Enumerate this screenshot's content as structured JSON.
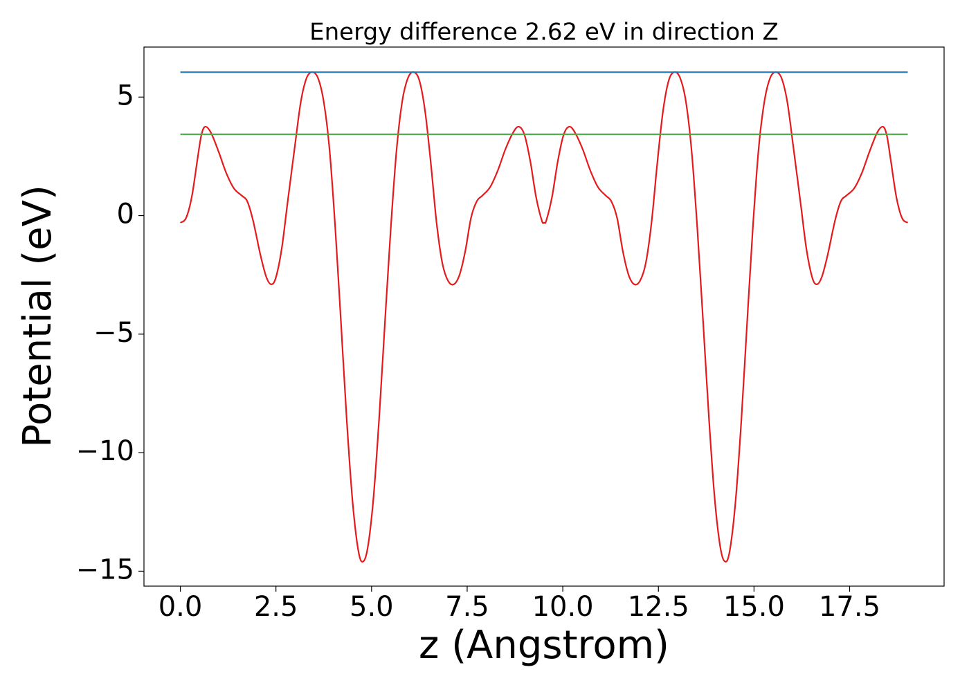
{
  "chart_data": {
    "type": "line",
    "title": "Energy difference 2.62 eV in direction Z",
    "xlabel": "z (Angstrom)",
    "ylabel": "Potential (eV)",
    "xlim": [
      -0.951,
      19.97
    ],
    "ylim": [
      -15.63,
      7.11
    ],
    "xticks": [
      {
        "value": 0,
        "label": "0.0"
      },
      2.5,
      {
        "value": 5,
        "label": "5.0"
      },
      7.5,
      {
        "value": 10,
        "label": "10.0"
      },
      12.5,
      {
        "value": 15,
        "label": "15.0"
      },
      17.5
    ],
    "yticks": [
      {
        "value": -15,
        "label": "−15"
      },
      {
        "value": -10,
        "label": "−10"
      },
      {
        "value": -5,
        "label": "−5"
      },
      0,
      5
    ],
    "series": [
      {
        "color": "#e41a1c",
        "x": [
          0,
          0.15,
          0.3,
          0.45,
          0.55,
          0.65,
          0.8,
          1.0,
          1.2,
          1.4,
          1.6,
          1.75,
          1.9,
          2.1,
          2.25,
          2.38,
          2.5,
          2.65,
          2.8,
          3.0,
          3.15,
          3.3,
          3.45,
          3.6,
          3.75,
          3.9,
          4.05,
          4.2,
          4.35,
          4.5,
          4.65,
          4.77,
          4.9,
          5.05,
          5.2,
          5.35,
          5.5,
          5.65,
          5.8,
          5.95,
          6.1,
          6.25,
          6.4,
          6.55,
          6.7,
          6.85,
          7.0,
          7.15,
          7.3,
          7.45,
          7.6,
          7.75,
          7.9,
          8.1,
          8.3,
          8.5,
          8.7,
          8.85,
          9.0,
          9.15,
          9.3,
          9.45,
          9.51,
          9.57,
          9.72,
          9.87,
          10.02,
          10.17,
          10.32,
          10.52,
          10.72,
          10.92,
          11.12,
          11.27,
          11.42,
          11.57,
          11.72,
          11.87,
          12.02,
          12.17,
          12.32,
          12.47,
          12.62,
          12.77,
          12.92,
          13.07,
          13.22,
          13.37,
          13.52,
          13.67,
          13.82,
          13.97,
          14.12,
          14.25,
          14.37,
          14.52,
          14.67,
          14.82,
          14.97,
          15.12,
          15.27,
          15.42,
          15.57,
          15.72,
          15.87,
          16.02,
          16.22,
          16.37,
          16.52,
          16.64,
          16.77,
          16.92,
          17.12,
          17.27,
          17.42,
          17.62,
          17.82,
          18.02,
          18.22,
          18.37,
          18.47,
          18.57,
          18.72,
          18.87,
          19.02
        ],
        "values": [
          -0.3,
          -0.1,
          0.8,
          2.4,
          3.4,
          3.75,
          3.5,
          2.7,
          1.8,
          1.15,
          0.85,
          0.6,
          -0.2,
          -1.7,
          -2.6,
          -2.9,
          -2.6,
          -1.4,
          0.5,
          3.0,
          4.8,
          5.8,
          6.05,
          5.8,
          4.8,
          2.8,
          -0.5,
          -4.5,
          -8.6,
          -12.0,
          -14.1,
          -14.6,
          -14.0,
          -11.9,
          -8.5,
          -4.5,
          -0.6,
          2.7,
          4.8,
          5.8,
          6.05,
          5.7,
          4.4,
          2.2,
          -0.3,
          -2.0,
          -2.75,
          -2.9,
          -2.5,
          -1.5,
          -0.1,
          0.6,
          0.85,
          1.2,
          1.9,
          2.8,
          3.5,
          3.75,
          3.4,
          2.3,
          0.8,
          -0.2,
          -0.3,
          -0.2,
          0.8,
          2.3,
          3.4,
          3.75,
          3.5,
          2.8,
          1.9,
          1.2,
          0.85,
          0.6,
          -0.1,
          -1.5,
          -2.5,
          -2.9,
          -2.75,
          -2.0,
          -0.3,
          2.2,
          4.4,
          5.7,
          6.05,
          5.8,
          4.8,
          2.7,
          -0.6,
          -4.5,
          -8.5,
          -11.9,
          -14.0,
          -14.6,
          -14.1,
          -12.0,
          -8.6,
          -4.5,
          -0.5,
          2.8,
          4.8,
          5.8,
          6.05,
          5.8,
          4.8,
          3.0,
          0.5,
          -1.4,
          -2.6,
          -2.9,
          -2.6,
          -1.7,
          -0.2,
          0.6,
          0.85,
          1.15,
          1.8,
          2.7,
          3.5,
          3.75,
          3.4,
          2.4,
          0.8,
          -0.1,
          -0.3
        ]
      },
      {
        "color": "#1f77b4",
        "x": [
          0,
          19.02
        ],
        "values": [
          6.05,
          6.05
        ]
      },
      {
        "color": "#4daf4a",
        "x": [
          0,
          19.02
        ],
        "values": [
          3.43,
          3.43
        ]
      }
    ]
  }
}
